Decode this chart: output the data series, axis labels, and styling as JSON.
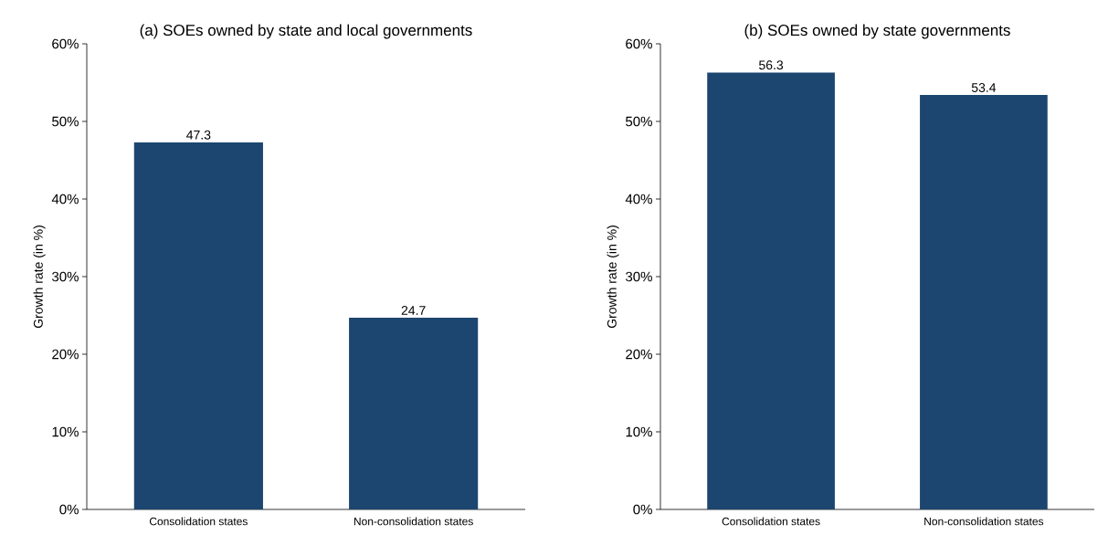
{
  "chart_data": [
    {
      "type": "bar",
      "title": "(a) SOEs owned by state and local governments",
      "ylabel": "Growth rate (in %)",
      "categories": [
        "Consolidation states",
        "Non-consolidation states"
      ],
      "values": [
        47.3,
        24.7
      ],
      "color": "#1c4670",
      "ylim": [
        0,
        60
      ],
      "yticks": [
        {
          "value": 0,
          "label": "0%"
        },
        {
          "value": 10,
          "label": "10%"
        },
        {
          "value": 20,
          "label": "20%"
        },
        {
          "value": 30,
          "label": "30%"
        },
        {
          "value": 40,
          "label": "40%"
        },
        {
          "value": 50,
          "label": "50%"
        },
        {
          "value": 60,
          "label": "60%"
        }
      ],
      "data_labels": true
    },
    {
      "type": "bar",
      "title": "(b) SOEs owned by state governments",
      "ylabel": "Growth rate (in %)",
      "categories": [
        "Consolidation states",
        "Non-consolidation states"
      ],
      "values": [
        56.3,
        53.4
      ],
      "color": "#1c4670",
      "ylim": [
        0,
        60
      ],
      "yticks": [
        {
          "value": 0,
          "label": "0%"
        },
        {
          "value": 10,
          "label": "10%"
        },
        {
          "value": 20,
          "label": "20%"
        },
        {
          "value": 30,
          "label": "30%"
        },
        {
          "value": 40,
          "label": "40%"
        },
        {
          "value": 50,
          "label": "50%"
        },
        {
          "value": 60,
          "label": "60%"
        }
      ],
      "data_labels": true
    }
  ]
}
